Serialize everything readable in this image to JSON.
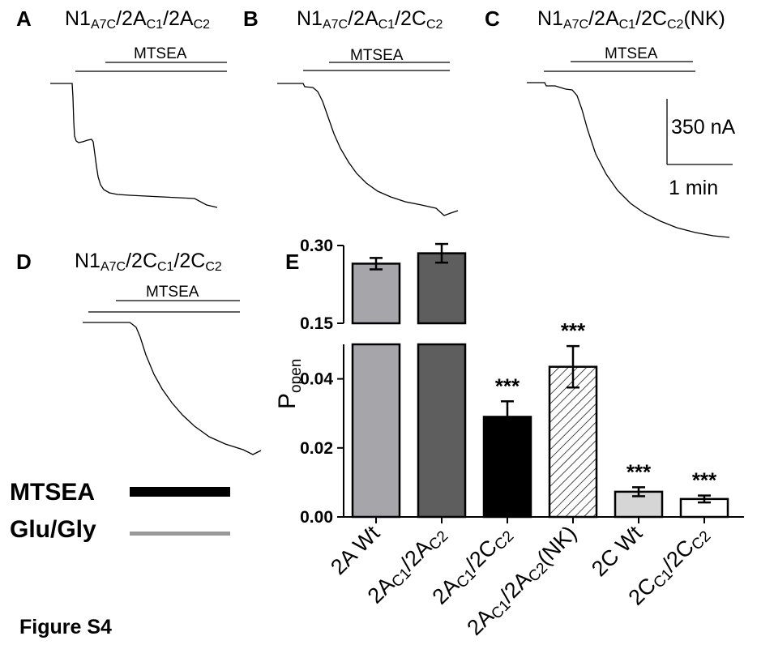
{
  "panels": {
    "A": {
      "letter": "A",
      "title": {
        "base": "N1",
        "sub1": "A7C",
        "mid1": "/2A",
        "sub2": "C1",
        "mid2": "/2A",
        "sub3": "C2",
        "tail": ""
      },
      "mtsea": "MTSEA"
    },
    "B": {
      "letter": "B",
      "title": {
        "base": "N1",
        "sub1": "A7C",
        "mid1": "/2A",
        "sub2": "C1",
        "mid2": "/2C",
        "sub3": "C2",
        "tail": ""
      },
      "mtsea": "MTSEA"
    },
    "C": {
      "letter": "C",
      "title": {
        "base": "N1",
        "sub1": "A7C",
        "mid1": "/2A",
        "sub2": "C1",
        "mid2": "/2C",
        "sub3": "C2",
        "tail": "(NK)"
      },
      "mtsea": "MTSEA"
    },
    "D": {
      "letter": "D",
      "title": {
        "base": "N1",
        "sub1": "A7C",
        "mid1": "/2C",
        "sub2": "C1",
        "mid2": "/2C",
        "sub3": "C2",
        "tail": ""
      },
      "mtsea": "MTSEA"
    },
    "E": {
      "letter": "E"
    }
  },
  "scale_bar": {
    "current": "350 nA",
    "time": "1 min"
  },
  "legend": {
    "items": [
      {
        "label": "MTSEA",
        "color": "#000000"
      },
      {
        "label": "Glu/Gly",
        "color": "#999999"
      }
    ]
  },
  "figure_label": "Figure S4",
  "chart_data": {
    "type": "bar",
    "ylabel": "P",
    "ylabel_sub": "open",
    "broken_axis": true,
    "ylim_lower": [
      0,
      0.05
    ],
    "ylim_upper": [
      0.15,
      0.3
    ],
    "yticks_lower": [
      "0.00",
      "0.02",
      "0.04"
    ],
    "yticks_upper": [
      "0.15",
      "0.30"
    ],
    "significance": "***",
    "categories": [
      {
        "base": "2A Wt",
        "parts": []
      },
      {
        "parts": [
          [
            "2A",
            ""
          ],
          [
            "C1",
            "sub"
          ],
          [
            "/2A",
            ""
          ],
          [
            "C2",
            "sub"
          ]
        ]
      },
      {
        "parts": [
          [
            "2A",
            ""
          ],
          [
            "C1",
            "sub"
          ],
          [
            "/2C",
            ""
          ],
          [
            "C2",
            "sub"
          ]
        ]
      },
      {
        "parts": [
          [
            "2A",
            ""
          ],
          [
            "C1",
            "sub"
          ],
          [
            "/2A",
            ""
          ],
          [
            "C2",
            "sub"
          ],
          [
            "(NK)",
            ""
          ]
        ]
      },
      {
        "base": "2C Wt",
        "parts": []
      },
      {
        "parts": [
          [
            "2C",
            ""
          ],
          [
            "C1",
            "sub"
          ],
          [
            "/2C",
            ""
          ],
          [
            "C2",
            "sub"
          ]
        ]
      }
    ],
    "values": [
      0.265,
      0.285,
      0.029,
      0.0435,
      0.0073,
      0.0052
    ],
    "errors": [
      0.011,
      0.018,
      0.0045,
      0.006,
      0.0013,
      0.001
    ],
    "significant": [
      false,
      false,
      true,
      true,
      true,
      true
    ],
    "fills": [
      "#a6a5aa",
      "#5e5e5e",
      "#000000",
      "hatch",
      "#d6d6d6",
      "#ffffff"
    ]
  }
}
